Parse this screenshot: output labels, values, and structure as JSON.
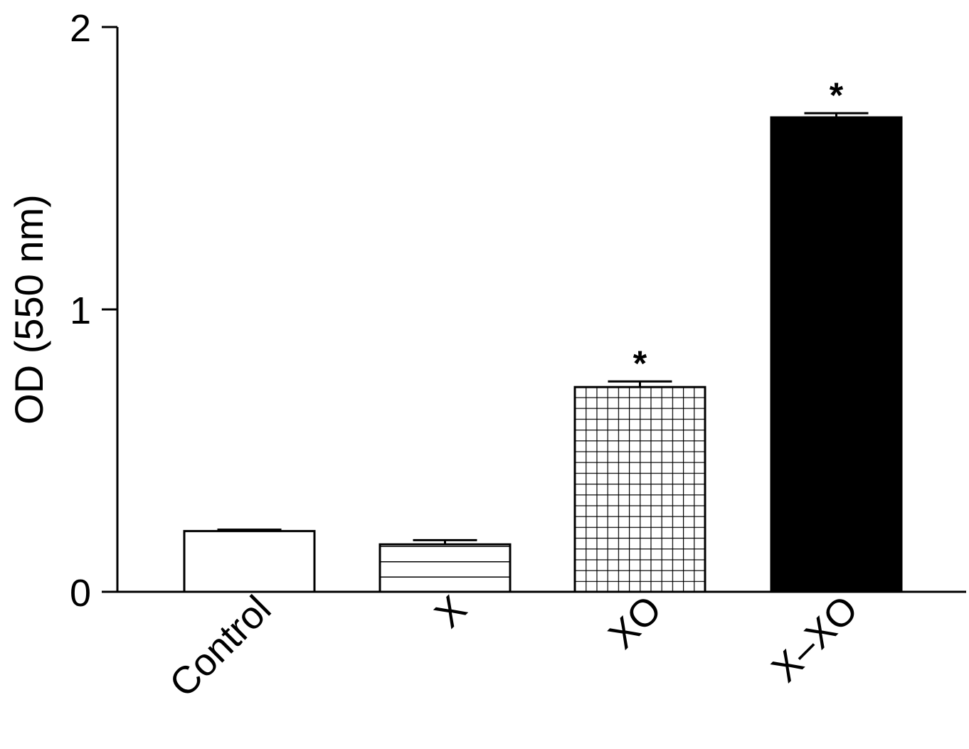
{
  "chart_data": {
    "type": "bar",
    "title": "",
    "xlabel": "",
    "ylabel": "OD (550 nm)",
    "ylim": [
      0,
      2
    ],
    "yticks": [
      "0",
      "1",
      "2"
    ],
    "categories": [
      "Control",
      "X",
      "XO",
      "X–XO"
    ],
    "values": [
      0.215,
      0.168,
      0.725,
      1.68
    ],
    "errors": [
      0.005,
      0.015,
      0.02,
      0.015
    ],
    "annotations": [
      "",
      "",
      "*",
      "*"
    ],
    "fills": [
      "white",
      "horizontal-lines",
      "grid",
      "black"
    ],
    "grid": false,
    "legend": "none",
    "colors": {
      "axis": "#000000",
      "bar_stroke": "#000000",
      "solid_fill": "#000000"
    }
  }
}
